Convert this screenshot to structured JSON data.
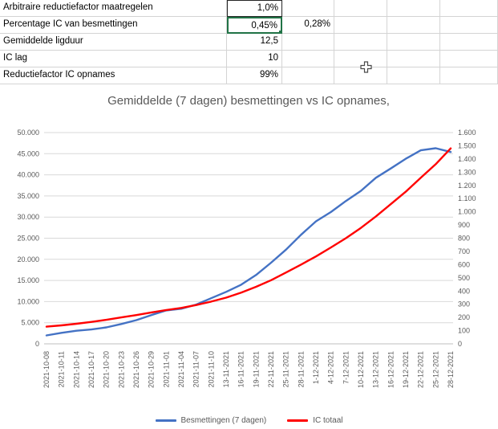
{
  "colors": {
    "selection_green": "#217346",
    "grid_line": "#d4d4d4",
    "chart_grid": "#d9d9d9",
    "axis_line": "#bfbfbf",
    "text_gray": "#595959"
  },
  "spreadsheet": {
    "rows": [
      {
        "label": "Arbitraire reductiefactor maatregelen",
        "value": "1,0%",
        "value2": ""
      },
      {
        "label": "Percentage IC van besmettingen",
        "value": "0,45%",
        "value2": "0,28%"
      },
      {
        "label": "Gemiddelde ligduur",
        "value": "12,5",
        "value2": ""
      },
      {
        "label": "IC lag",
        "value": "10",
        "value2": ""
      },
      {
        "label": "Reductiefactor IC opnames",
        "value": "99%",
        "value2": ""
      }
    ]
  },
  "chart_data": {
    "type": "line",
    "title": "Gemiddelde (7 dagen) besmettingen vs IC opnames,",
    "grid": true,
    "legend_position": "bottom",
    "categories": [
      "2021-10-08",
      "2021-10-11",
      "2021-10-14",
      "2021-10-17",
      "2021-10-20",
      "2021-10-23",
      "2021-10-26",
      "2021-10-29",
      "2021-11-01",
      "2021-11-04",
      "2021-11-07",
      "2021-11-10",
      "13-11-2021",
      "16-11-2021",
      "19-11-2021",
      "22-11-2021",
      "25-11-2021",
      "28-11-2021",
      "1-12-2021",
      "4-12-2021",
      "7-12-2021",
      "10-12-2021",
      "13-12-2021",
      "16-12-2021",
      "19-12-2021",
      "22-12-2021",
      "25-12-2021",
      "28-12-2021"
    ],
    "series": [
      {
        "name": "Besmettingen (7 dagen)",
        "axis": "left",
        "color": "#4472c4",
        "values": [
          2000,
          2600,
          3100,
          3400,
          3900,
          4700,
          5600,
          6800,
          7900,
          8300,
          9300,
          10800,
          12300,
          14000,
          16300,
          19200,
          22300,
          25800,
          29000,
          31200,
          33800,
          36200,
          39300,
          41500,
          43800,
          45800,
          46300,
          45400
        ]
      },
      {
        "name": "IC totaal",
        "axis": "right",
        "color": "#ff0000",
        "values": [
          130,
          140,
          152,
          166,
          182,
          200,
          218,
          238,
          256,
          272,
          294,
          320,
          350,
          388,
          432,
          482,
          540,
          600,
          662,
          730,
          800,
          878,
          965,
          1058,
          1152,
          1258,
          1360,
          1480
        ]
      }
    ],
    "left_axis": {
      "min": 0,
      "max": 50000,
      "step": 5000,
      "tick_labels": [
        "0",
        "5.000",
        "10.000",
        "15.000",
        "20.000",
        "25.000",
        "30.000",
        "35.000",
        "40.000",
        "45.000",
        "50.000"
      ]
    },
    "right_axis": {
      "min": 0,
      "max": 1600,
      "step": 100,
      "tick_labels": [
        "0",
        "100",
        "200",
        "300",
        "400",
        "500",
        "600",
        "700",
        "800",
        "900",
        "1.000",
        "1.100",
        "1.200",
        "1.300",
        "1.400",
        "1.500",
        "1.600"
      ]
    }
  }
}
